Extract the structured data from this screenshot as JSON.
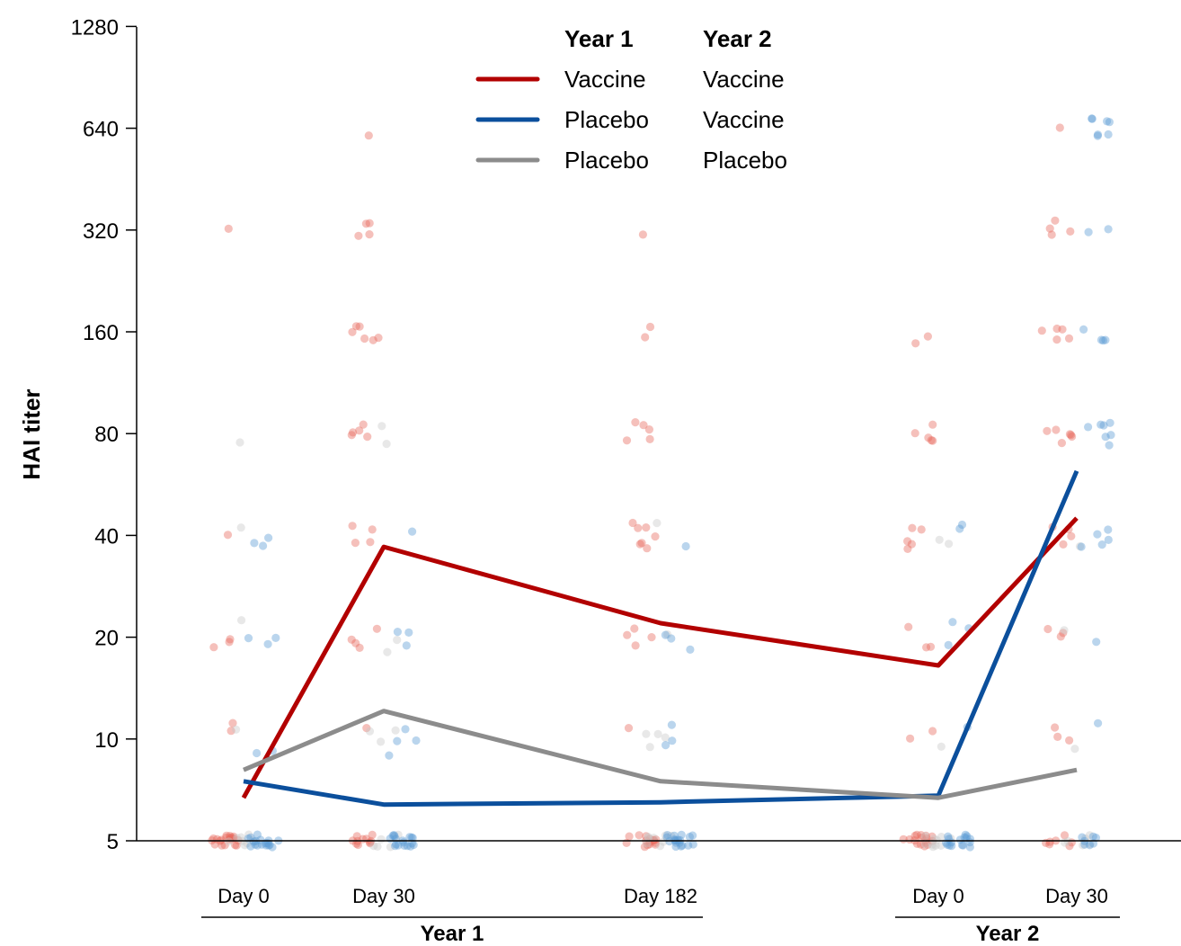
{
  "chart_data": {
    "type": "line",
    "ylabel": "HAI titer",
    "y_scale": "log2",
    "ylim": [
      5,
      1280
    ],
    "y_ticks": [
      "5",
      "10",
      "20",
      "40",
      "80",
      "160",
      "320",
      "640",
      "1280"
    ],
    "categories": [
      "Day 0",
      "Day 30",
      "Day 182",
      "Day 0",
      "Day 30"
    ],
    "groups": [
      {
        "label": "Year 1",
        "categories": [
          "Day 0",
          "Day 30",
          "Day 182"
        ]
      },
      {
        "label": "Year 2",
        "categories": [
          "Day 0",
          "Day 30"
        ]
      }
    ],
    "legend": {
      "headers": [
        "Year 1",
        "Year 2"
      ],
      "entries": [
        {
          "year1": "Vaccine",
          "year2": "Vaccine",
          "color": "#b20000"
        },
        {
          "year1": "Placebo",
          "year2": "Vaccine",
          "color": "#0b4f9c"
        },
        {
          "year1": "Placebo",
          "year2": "Placebo",
          "color": "#8c8c8c"
        }
      ]
    },
    "series": [
      {
        "color": "#b20000",
        "values": [
          6.7,
          37,
          22,
          16.5,
          45
        ]
      },
      {
        "color": "#0b4f9c",
        "values": [
          7.5,
          6.4,
          6.5,
          6.8,
          62
        ]
      },
      {
        "color": "#8c8c8c",
        "values": [
          8.1,
          12.1,
          7.5,
          6.7,
          8.1
        ]
      }
    ],
    "points": {
      "colors": {
        "vaccine": "#e8685d",
        "switch": "#5b9bd5",
        "placebo": "#c8c8c8"
      },
      "clusters": [
        {
          "x": 0,
          "g": "vaccine",
          "values": [
            320,
            41,
            19.5,
            19,
            20,
            10.5,
            11,
            5,
            5,
            5,
            5,
            5,
            5,
            5,
            5,
            5,
            5,
            5,
            5,
            5,
            5,
            5,
            5,
            5,
            5,
            5,
            5
          ]
        },
        {
          "x": 0,
          "g": "placebo",
          "values": [
            75,
            43,
            22,
            10.5,
            5,
            5,
            5,
            5,
            5,
            5,
            5,
            5
          ]
        },
        {
          "x": 0,
          "g": "switch",
          "values": [
            39,
            38,
            38,
            20,
            20,
            19,
            9.3,
            9.2,
            5,
            5,
            5,
            5,
            5,
            5,
            5,
            5,
            5,
            5,
            5,
            5,
            5,
            5,
            5,
            5,
            5,
            5
          ]
        },
        {
          "x": 1,
          "g": "vaccine",
          "values": [
            620,
            330,
            330,
            310,
            310,
            165,
            165,
            160,
            155,
            155,
            150,
            85,
            82,
            80,
            78,
            78,
            42,
            42,
            38,
            38,
            21,
            20,
            19,
            19,
            11,
            5,
            5,
            5,
            5,
            5,
            5,
            5,
            5,
            5,
            5,
            5
          ]
        },
        {
          "x": 1,
          "g": "placebo",
          "values": [
            84,
            74,
            20,
            18,
            10.5,
            10.5,
            10,
            5,
            5,
            5,
            5,
            5
          ]
        },
        {
          "x": 1,
          "g": "switch",
          "values": [
            41,
            21,
            21,
            19,
            10.5,
            10,
            9,
            10,
            5,
            5,
            5,
            5,
            5,
            5,
            5,
            5,
            5,
            5,
            5,
            5,
            5,
            5,
            5,
            5,
            5,
            5
          ]
        },
        {
          "x": 2,
          "g": "vaccine",
          "values": [
            305,
            165,
            155,
            85,
            85,
            82,
            78,
            78,
            43,
            43,
            42,
            40,
            38,
            38,
            37,
            21,
            20,
            20,
            18.5,
            11,
            5,
            5,
            5,
            5,
            5,
            5,
            5,
            5,
            5,
            5,
            5,
            5,
            5,
            5,
            5
          ]
        },
        {
          "x": 2,
          "g": "placebo",
          "values": [
            43,
            20,
            10.5,
            10.5,
            10,
            9.3,
            5,
            5,
            5,
            5,
            5,
            5,
            5,
            5
          ]
        },
        {
          "x": 2,
          "g": "switch",
          "values": [
            37,
            20,
            20,
            18.5,
            11,
            10,
            9.5,
            5,
            5,
            5,
            5,
            5,
            5,
            5,
            5,
            5,
            5,
            5,
            5,
            5,
            5,
            5,
            5,
            5,
            5,
            5
          ]
        },
        {
          "x": 3,
          "g": "vaccine",
          "values": [
            155,
            150,
            85,
            80,
            78,
            78,
            75,
            42,
            42,
            39,
            37,
            37,
            21,
            18.5,
            18.5,
            10.5,
            10,
            5,
            5,
            5,
            5,
            5,
            5,
            5,
            5,
            5,
            5,
            5,
            5,
            5,
            5,
            5,
            5,
            5
          ]
        },
        {
          "x": 3,
          "g": "placebo",
          "values": [
            38,
            37,
            9.3,
            5,
            5,
            5,
            5,
            5,
            5,
            5,
            5,
            5,
            5
          ]
        },
        {
          "x": 3,
          "g": "switch",
          "values": [
            43,
            41,
            22,
            21,
            19,
            11,
            5,
            5,
            5,
            5,
            5,
            5,
            5,
            5,
            5,
            5,
            5,
            5,
            5,
            5,
            5,
            5,
            5
          ]
        },
        {
          "x": 4,
          "g": "vaccine",
          "values": [
            640,
            340,
            320,
            320,
            305,
            165,
            165,
            160,
            155,
            155,
            82,
            82,
            80,
            78,
            78,
            76,
            42,
            42,
            40,
            38,
            21,
            21,
            20,
            11,
            10,
            10,
            5,
            5,
            5,
            5,
            5,
            5,
            5
          ]
        },
        {
          "x": 4,
          "g": "placebo",
          "values": [
            37,
            21,
            9.3,
            5,
            5,
            5,
            5,
            5,
            5
          ]
        },
        {
          "x": 4,
          "g": "switch",
          "values": [
            680,
            680,
            660,
            660,
            620,
            620,
            620,
            320,
            310,
            160,
            150,
            150,
            150,
            85,
            85,
            85,
            82,
            80,
            78,
            75,
            42,
            41,
            38,
            38,
            37,
            19,
            11,
            5,
            5,
            5,
            5,
            5,
            5,
            5
          ]
        }
      ]
    }
  }
}
